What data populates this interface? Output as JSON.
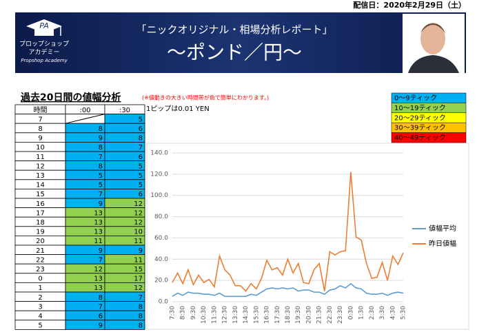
{
  "header": {
    "date": "配信日：2020年2月29日（土）",
    "logo_initials": "PA",
    "logo_line1": "プロップショップ",
    "logo_line2": "アカデミー",
    "logo_sub": "Propshop Academy",
    "title": "「ニックオリジナル・相場分析レポート」",
    "subtitle": "～ポンド／円～"
  },
  "report": {
    "title": "過去20日間の値幅分析",
    "note": "(※値動きの大きい時間帯が色で簡単にわかります。)",
    "pip": "1ピップは0.01 YEN"
  },
  "legend": [
    {
      "label": "0～9ティック",
      "color": "#00b0f0"
    },
    {
      "label": "10～19ティック",
      "color": "#92d050"
    },
    {
      "label": "20～29ティック",
      "color": "#ffff00"
    },
    {
      "label": "30～39ティック",
      "color": "#ffc000"
    },
    {
      "label": "40～49ティック",
      "color": "#ff0000"
    }
  ],
  "table": {
    "columns": [
      "時間",
      ":00",
      ":30"
    ],
    "rows": [
      [
        7,
        null,
        5
      ],
      [
        8,
        8,
        6
      ],
      [
        9,
        9,
        8
      ],
      [
        10,
        8,
        7
      ],
      [
        11,
        7,
        6
      ],
      [
        12,
        8,
        5
      ],
      [
        13,
        5,
        5
      ],
      [
        14,
        5,
        5
      ],
      [
        15,
        7,
        6
      ],
      [
        16,
        9,
        12
      ],
      [
        17,
        13,
        12
      ],
      [
        18,
        13,
        12
      ],
      [
        19,
        13,
        10
      ],
      [
        20,
        11,
        11
      ],
      [
        21,
        9,
        9
      ],
      [
        22,
        7,
        11
      ],
      [
        23,
        12,
        15
      ],
      [
        0,
        13,
        17
      ],
      [
        1,
        13,
        12
      ],
      [
        2,
        8,
        7
      ],
      [
        3,
        7,
        8
      ],
      [
        4,
        6,
        8
      ],
      [
        5,
        9,
        8
      ]
    ]
  },
  "chart_data": {
    "type": "line",
    "categories": [
      "7:30",
      null,
      "8:30",
      null,
      "9:30",
      null,
      "10:30",
      null,
      "11:30",
      null,
      "12:30",
      null,
      "13:30",
      null,
      "14:30",
      null,
      "15:30",
      null,
      "16:30",
      null,
      "17:30",
      null,
      "18:30",
      null,
      "19:30",
      null,
      "20:30",
      null,
      "21:30",
      null,
      "22:30",
      null,
      "23:30",
      null,
      "0:30",
      null,
      "1:30",
      null,
      "2:30",
      null,
      "3:30",
      null,
      "4:30",
      null,
      "5:30"
    ],
    "series": [
      {
        "name": "値幅平均",
        "color": "#5b9bd5",
        "values": [
          5,
          8,
          6,
          9,
          8,
          8,
          7,
          7,
          6,
          8,
          5,
          5,
          5,
          5,
          5,
          7,
          6,
          9,
          12,
          13,
          12,
          13,
          12,
          13,
          10,
          11,
          11,
          9,
          9,
          7,
          11,
          12,
          15,
          13,
          17,
          13,
          12,
          8,
          7,
          7,
          8,
          6,
          8,
          9,
          8
        ]
      },
      {
        "name": "昨日値幅",
        "color": "#ed7d31",
        "values": [
          18,
          27,
          17,
          30,
          16,
          25,
          18,
          21,
          14,
          43,
          30,
          25,
          15,
          15,
          10,
          17,
          12,
          22,
          39,
          30,
          32,
          25,
          40,
          27,
          36,
          18,
          17,
          30,
          36,
          10,
          47,
          44,
          47,
          48,
          122,
          61,
          58,
          36,
          22,
          23,
          37,
          20,
          43,
          35,
          46
        ]
      }
    ],
    "ylim": [
      0,
      140
    ],
    "yticks": [
      {
        "value": 0,
        "label": "0.0"
      },
      {
        "value": 20,
        "label": "20.0"
      },
      {
        "value": 40,
        "label": "40.0"
      },
      {
        "value": 60,
        "label": "60.0"
      },
      {
        "value": 80,
        "label": "80.0"
      },
      {
        "value": 100,
        "label": "100.0"
      },
      {
        "value": 120,
        "label": "120.0"
      },
      {
        "value": 140,
        "label": "140.0"
      }
    ],
    "legend": "right"
  }
}
